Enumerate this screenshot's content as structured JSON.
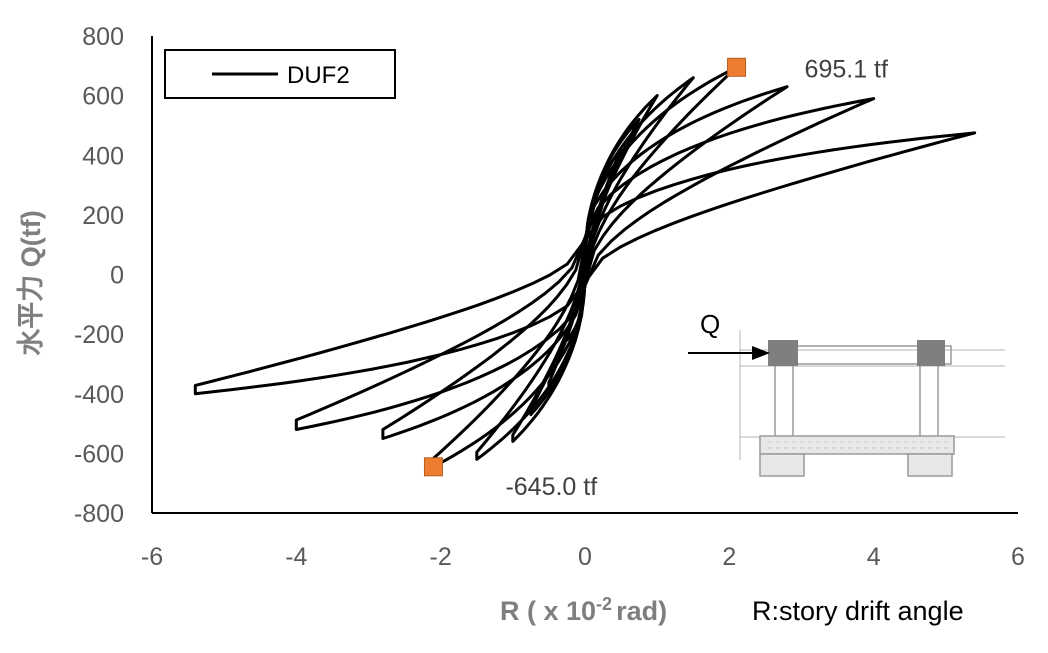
{
  "chart_data": {
    "type": "line",
    "title": "",
    "xlabel": "R ( x 10",
    "xlabel_sup": "-2",
    "xlabel_suffix": "rad)",
    "xlabel_note": "R:story drift angle",
    "ylabel": "水平力 Q(tf)",
    "xlim": [
      -6,
      6
    ],
    "ylim": [
      -800,
      800
    ],
    "xticks": [
      -6,
      -4,
      -2,
      0,
      2,
      4,
      6
    ],
    "yticks": [
      -800,
      -600,
      -400,
      -200,
      0,
      200,
      400,
      600,
      800
    ],
    "grid": false,
    "legend_position": "top-left",
    "series": [
      {
        "name": "DUF2",
        "color": "#000000",
        "cycles": [
          {
            "r": 0.25,
            "qmax": 240,
            "qmin": -220,
            "res": 40
          },
          {
            "r": 0.5,
            "qmax": 420,
            "qmin": -380,
            "res": 45
          },
          {
            "r": 0.75,
            "qmax": 520,
            "qmin": -470,
            "res": 50
          },
          {
            "r": 1.0,
            "qmax": 600,
            "qmin": -560,
            "res": 55
          },
          {
            "r": 1.5,
            "qmax": 660,
            "qmin": -620,
            "res": 60
          },
          {
            "r": 2.1,
            "qmax": 695,
            "qmin": -645,
            "res": 70
          },
          {
            "r": 2.8,
            "qmax": 630,
            "qmin": -550,
            "res": 75
          },
          {
            "r": 4.0,
            "qmax": 590,
            "qmin": -520,
            "res": 80
          },
          {
            "r": 5.4,
            "qmax": 475,
            "qmin": -400,
            "res": 70
          }
        ]
      }
    ],
    "peak_markers": [
      {
        "x": 2.1,
        "y": 695.1,
        "label": "695.1 tf",
        "color": "#ed7d31"
      },
      {
        "x": -2.1,
        "y": -645.0,
        "label": "-645.0 tf",
        "color": "#ed7d31"
      }
    ],
    "inset": {
      "label": "Q"
    }
  }
}
